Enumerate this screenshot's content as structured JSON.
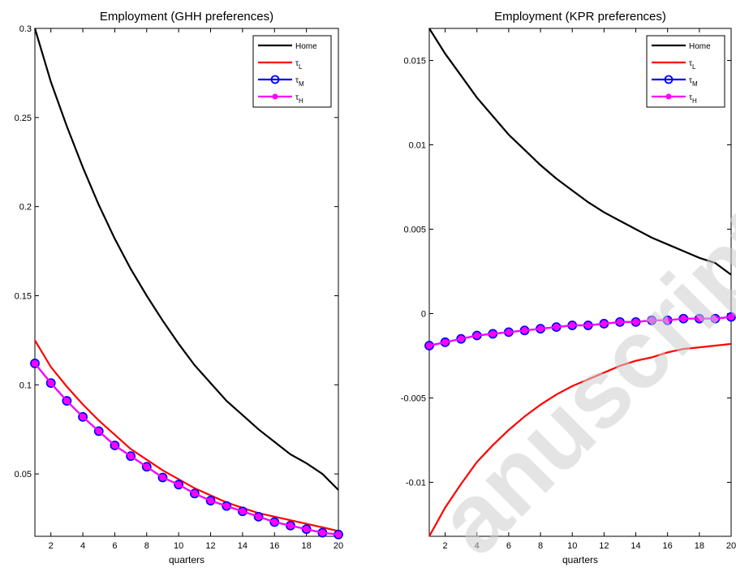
{
  "watermark": "anuscript",
  "chart_data": [
    {
      "type": "line",
      "title": "Employment (GHH preferences)",
      "xlabel": "quarters",
      "ylabel": "",
      "xlim": [
        1,
        20
      ],
      "ylim": [
        0.015,
        0.3
      ],
      "xticks": [
        2,
        4,
        6,
        8,
        10,
        12,
        14,
        16,
        18,
        20
      ],
      "yticks": [
        0.05,
        0.1,
        0.15,
        0.2,
        0.25,
        0.3
      ],
      "ytick_labels": [
        "0.05",
        "0.1",
        "0.15",
        "0.2",
        "0.25",
        "0.3"
      ],
      "legend": "top-right",
      "grid": false,
      "x": [
        1,
        2,
        3,
        4,
        5,
        6,
        7,
        8,
        9,
        10,
        11,
        12,
        13,
        14,
        15,
        16,
        17,
        18,
        19,
        20
      ],
      "series": [
        {
          "name": "Home",
          "color": "#000000",
          "marker": "none",
          "values": [
            0.3,
            0.27,
            0.245,
            0.222,
            0.201,
            0.182,
            0.165,
            0.15,
            0.136,
            0.123,
            0.111,
            0.101,
            0.091,
            0.083,
            0.075,
            0.068,
            0.061,
            0.056,
            0.05,
            0.041
          ]
        },
        {
          "name": "τL",
          "main": "τ",
          "sub": "L",
          "color": "#ff0000",
          "marker": "none",
          "values": [
            0.125,
            0.11,
            0.099,
            0.089,
            0.08,
            0.072,
            0.064,
            0.058,
            0.052,
            0.047,
            0.042,
            0.038,
            0.034,
            0.031,
            0.028,
            0.026,
            0.024,
            0.022,
            0.02,
            0.018
          ]
        },
        {
          "name": "τM",
          "main": "τ",
          "sub": "M",
          "color": "#0000ff",
          "marker": "circle",
          "values": [
            0.112,
            0.101,
            0.091,
            0.082,
            0.074,
            0.066,
            0.06,
            0.054,
            0.048,
            0.044,
            0.039,
            0.035,
            0.032,
            0.029,
            0.026,
            0.023,
            0.021,
            0.019,
            0.017,
            0.016
          ]
        },
        {
          "name": "τH",
          "main": "τ",
          "sub": "H",
          "color": "#ff00ff",
          "marker": "dot",
          "values": [
            0.112,
            0.101,
            0.091,
            0.082,
            0.074,
            0.066,
            0.06,
            0.054,
            0.048,
            0.044,
            0.039,
            0.035,
            0.032,
            0.029,
            0.026,
            0.023,
            0.021,
            0.019,
            0.017,
            0.016
          ]
        }
      ]
    },
    {
      "type": "line",
      "title": "Employment (KPR preferences)",
      "xlabel": "quarters",
      "ylabel": "",
      "xlim": [
        1,
        20
      ],
      "ylim": [
        -0.0132,
        0.0169
      ],
      "xticks": [
        2,
        4,
        6,
        8,
        10,
        12,
        14,
        16,
        18,
        20
      ],
      "yticks": [
        -0.01,
        -0.005,
        0,
        0.005,
        0.01,
        0.015
      ],
      "ytick_labels": [
        "-0.01",
        "-0.005",
        "0",
        "0.005",
        "0.01",
        "0.015"
      ],
      "legend": "top-right",
      "grid": false,
      "x": [
        1,
        2,
        3,
        4,
        5,
        6,
        7,
        8,
        9,
        10,
        11,
        12,
        13,
        14,
        15,
        16,
        17,
        18,
        19,
        20
      ],
      "series": [
        {
          "name": "Home",
          "color": "#000000",
          "marker": "none",
          "values": [
            0.0169,
            0.0154,
            0.0141,
            0.0128,
            0.0117,
            0.0106,
            0.0097,
            0.0088,
            0.008,
            0.0073,
            0.0066,
            0.006,
            0.0055,
            0.005,
            0.0045,
            0.0041,
            0.0037,
            0.0033,
            0.003,
            0.0023
          ]
        },
        {
          "name": "τL",
          "main": "τ",
          "sub": "L",
          "color": "#ff0000",
          "marker": "none",
          "values": [
            -0.0132,
            -0.0115,
            -0.0101,
            -0.0088,
            -0.0078,
            -0.0069,
            -0.0061,
            -0.0054,
            -0.0048,
            -0.0043,
            -0.0039,
            -0.0035,
            -0.0031,
            -0.0028,
            -0.0026,
            -0.0023,
            -0.0021,
            -0.002,
            -0.0019,
            -0.0018
          ]
        },
        {
          "name": "τM",
          "main": "τ",
          "sub": "M",
          "color": "#0000ff",
          "marker": "circle",
          "values": [
            -0.0019,
            -0.0017,
            -0.0015,
            -0.0013,
            -0.0012,
            -0.0011,
            -0.001,
            -0.0009,
            -0.0008,
            -0.0007,
            -0.0007,
            -0.0006,
            -0.0005,
            -0.0005,
            -0.0004,
            -0.0004,
            -0.0003,
            -0.0003,
            -0.0003,
            -0.0002
          ]
        },
        {
          "name": "τH",
          "main": "τ",
          "sub": "H",
          "color": "#ff00ff",
          "marker": "dot",
          "values": [
            -0.0019,
            -0.0017,
            -0.0015,
            -0.0013,
            -0.0012,
            -0.0011,
            -0.001,
            -0.0009,
            -0.0008,
            -0.0007,
            -0.0007,
            -0.0006,
            -0.0005,
            -0.0005,
            -0.0004,
            -0.0004,
            -0.0003,
            -0.0003,
            -0.0003,
            -0.0002
          ]
        }
      ]
    }
  ]
}
